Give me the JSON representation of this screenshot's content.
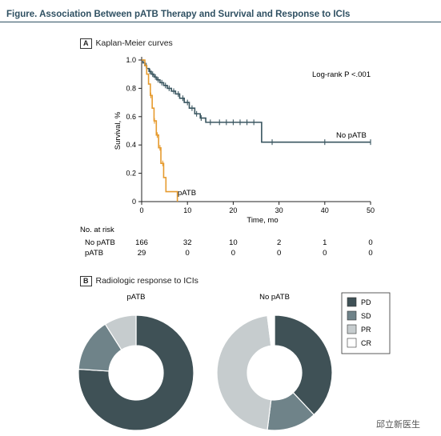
{
  "figure_title": "Figure. Association Between pATB Therapy and Survival and Response to ICIs",
  "panel_a": {
    "letter": "A",
    "title": "Kaplan-Meier curves"
  },
  "panel_b": {
    "letter": "B",
    "title": "Radiologic response to ICIs"
  },
  "watermark": "邱立新医生",
  "colors": {
    "no_patb": "#3a5660",
    "patb": "#e69b2f",
    "PD": "#3f5156",
    "SD": "#6f8389",
    "PR": "#c6ccce",
    "CR": "#ffffff"
  },
  "chart_data": [
    {
      "type": "line",
      "title": "Kaplan-Meier curves",
      "xlabel": "Time, mo",
      "ylabel": "Survival, %",
      "xlim": [
        0,
        50
      ],
      "ylim": [
        0,
        1.0
      ],
      "xticks": [
        "0",
        "10",
        "20",
        "30",
        "40",
        "50"
      ],
      "yticks": [
        "0",
        "0.2",
        "0.4",
        "0.6",
        "0.8",
        "1.0"
      ],
      "annotation": "Log-rank P <.001",
      "series": [
        {
          "name": "No pATB",
          "x": [
            0,
            0.3,
            0.7,
            1.1,
            1.6,
            2.1,
            2.7,
            3.3,
            4.0,
            4.8,
            5.6,
            6.5,
            7.4,
            8.3,
            9.3,
            10.4,
            11.6,
            12.8,
            14.0,
            26.2,
            50
          ],
          "y": [
            1.0,
            0.98,
            0.96,
            0.94,
            0.92,
            0.9,
            0.88,
            0.86,
            0.84,
            0.82,
            0.8,
            0.78,
            0.76,
            0.73,
            0.7,
            0.66,
            0.62,
            0.59,
            0.56,
            0.42,
            0.42
          ],
          "censor_x": [
            1.0,
            1.8,
            2.4,
            3.0,
            3.6,
            4.4,
            5.2,
            6.0,
            7.0,
            8.0,
            9.0,
            10.0,
            11.0,
            12.0,
            13.0,
            15.0,
            17.0,
            18.5,
            20.0,
            21.5,
            23.0,
            24.5,
            28.5,
            40.0,
            50.0
          ],
          "risk": [
            "166",
            "32",
            "10",
            "2",
            "1",
            "0"
          ]
        },
        {
          "name": "pATB",
          "x": [
            0,
            0.7,
            1.1,
            1.5,
            1.9,
            2.3,
            2.7,
            3.2,
            3.7,
            4.2,
            4.8,
            5.3,
            7.8
          ],
          "y": [
            1.0,
            0.96,
            0.9,
            0.83,
            0.75,
            0.66,
            0.57,
            0.47,
            0.38,
            0.27,
            0.17,
            0.07,
            0.0
          ],
          "censor_x": [
            2.0,
            2.8,
            3.4,
            4.0,
            4.6
          ],
          "risk": [
            "29",
            "0",
            "0",
            "0",
            "0",
            "0"
          ]
        }
      ],
      "risk_table": {
        "title": "No. at risk"
      }
    },
    {
      "type": "pie",
      "title": "pATB",
      "categories": [
        "PD",
        "SD",
        "PR",
        "CR"
      ],
      "values": [
        76,
        15,
        9,
        0
      ]
    },
    {
      "type": "pie",
      "title": "No pATB",
      "categories": [
        "PD",
        "SD",
        "PR",
        "CR"
      ],
      "values": [
        38,
        14,
        46,
        2
      ]
    }
  ],
  "legend": [
    "PD",
    "SD",
    "PR",
    "CR"
  ]
}
